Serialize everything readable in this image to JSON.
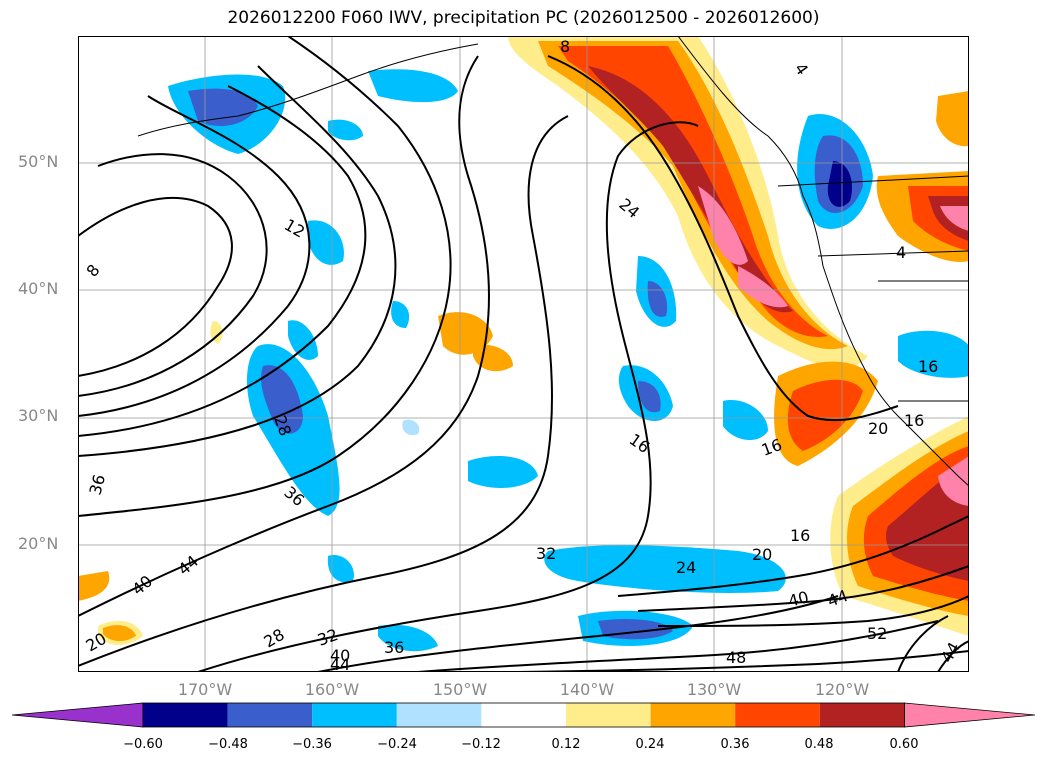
{
  "title": "2026012200 F060 IWV, precipitation PC (2026012500 - 2026012600)",
  "map": {
    "projection": "equirectangular",
    "lon_range": [
      -179,
      -109
    ],
    "lat_range": [
      10,
      60
    ],
    "grid": true,
    "lat_labels": [
      {
        "text": "50°N",
        "lat": 50
      },
      {
        "text": "40°N",
        "lat": 40
      },
      {
        "text": "30°N",
        "lat": 30
      },
      {
        "text": "20°N",
        "lat": 20
      }
    ],
    "lon_labels": [
      {
        "text": "170°W",
        "lon": -170
      },
      {
        "text": "160°W",
        "lon": -160
      },
      {
        "text": "150°W",
        "lon": -150
      },
      {
        "text": "140°W",
        "lon": -140
      },
      {
        "text": "130°W",
        "lon": -130
      },
      {
        "text": "120°W",
        "lon": -120
      }
    ],
    "ocean_color": "#ffffff",
    "contour_color": "#000000",
    "contour_labels": [
      "8",
      "4",
      "24",
      "12",
      "8",
      "28",
      "36",
      "16",
      "36",
      "44",
      "16",
      "20",
      "16",
      "32",
      "24",
      "20",
      "16",
      "40",
      "44",
      "40",
      "28",
      "32",
      "36",
      "40",
      "44",
      "48",
      "52",
      "44",
      "4",
      "20",
      "16"
    ]
  },
  "colorbar": {
    "colors": [
      "#9932cc",
      "#00008b",
      "#3a5fcd",
      "#00bfff",
      "#b0e2ff",
      "#ffffff",
      "#ffec8b",
      "#ffa500",
      "#ff4500",
      "#b22222",
      "#ff82ab"
    ],
    "ticks": [
      "−0.60",
      "−0.48",
      "−0.36",
      "−0.24",
      "−0.12",
      "0.12",
      "0.24",
      "0.36",
      "0.48",
      "0.60"
    ]
  }
}
